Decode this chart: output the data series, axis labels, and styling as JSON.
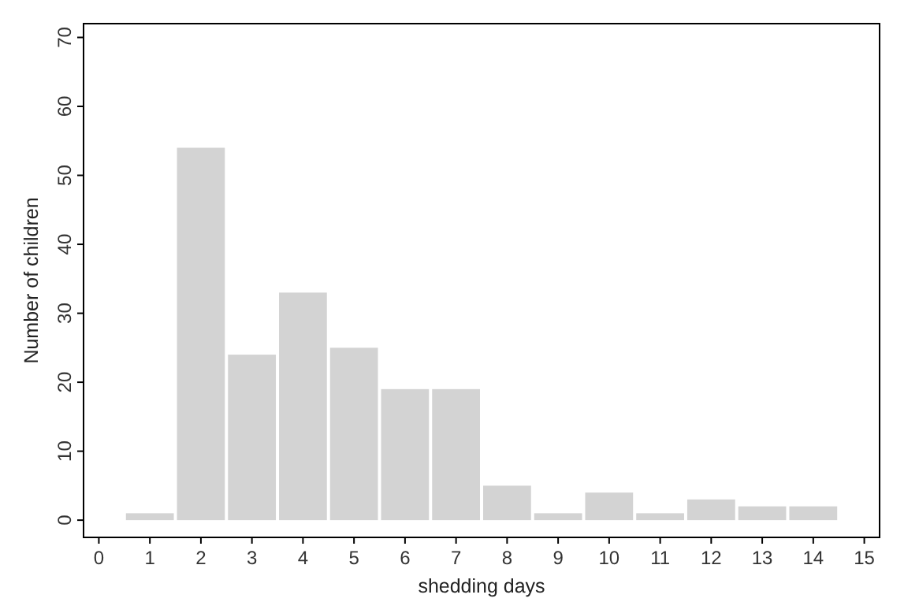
{
  "chart_data": {
    "type": "histogram",
    "xlabel": "shedding days",
    "ylabel": "Number of children",
    "bins": [
      0.5,
      1.5,
      2.5,
      3.5,
      4.5,
      5.5,
      6.5,
      7.5,
      8.5,
      9.5,
      10.5,
      11.5,
      12.5,
      13.5,
      14.5
    ],
    "values": [
      1,
      54,
      24,
      33,
      25,
      19,
      19,
      5,
      1,
      4,
      1,
      3,
      2,
      2
    ],
    "color": "#d3d3d3",
    "xlim": [
      -0.3,
      15.3
    ],
    "xticks": [
      0,
      1,
      2,
      3,
      4,
      5,
      6,
      7,
      8,
      9,
      10,
      11,
      12,
      13,
      14,
      15
    ],
    "ylim": [
      -2.5,
      72
    ],
    "yticks": [
      0,
      10,
      20,
      30,
      40,
      50,
      60,
      70
    ],
    "grid": false
  }
}
